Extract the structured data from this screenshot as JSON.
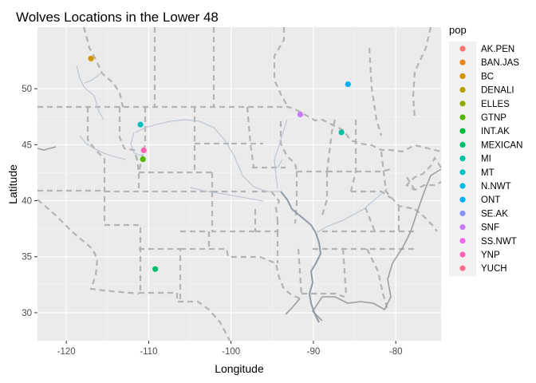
{
  "chart_data": {
    "type": "scatter",
    "title": "Wolves Locations in the Lower 48",
    "xlabel": "Longitude",
    "ylabel": "Latitude",
    "xlim": [
      -123.5,
      -74.5
    ],
    "ylim": [
      27.5,
      55.5
    ],
    "x_ticks": [
      -120,
      -110,
      -100,
      -90,
      -80
    ],
    "x_tick_labels": [
      "-120",
      "-110",
      "-100",
      "-90",
      "-80"
    ],
    "y_ticks": [
      30,
      35,
      40,
      45,
      50
    ],
    "y_tick_labels": [
      "30",
      "35",
      "40",
      "45",
      "50"
    ],
    "grid": true,
    "background_map": "US state and Canadian province borders",
    "legend_position": "right",
    "legend_title": "pop",
    "legend": [
      {
        "name": "AK.PEN",
        "color": "#F8766D"
      },
      {
        "name": "BAN.JAS",
        "color": "#E7851E"
      },
      {
        "name": "BC",
        "color": "#D09400"
      },
      {
        "name": "DENALI",
        "color": "#B2A100"
      },
      {
        "name": "ELLES",
        "color": "#8BAB00"
      },
      {
        "name": "GTNP",
        "color": "#55B400"
      },
      {
        "name": "INT.AK",
        "color": "#00BA38"
      },
      {
        "name": "MEXICAN",
        "color": "#00BE6C"
      },
      {
        "name": "MI",
        "color": "#00C1A3"
      },
      {
        "name": "MT",
        "color": "#00BFC4"
      },
      {
        "name": "N.NWT",
        "color": "#00B9E3"
      },
      {
        "name": "ONT",
        "color": "#00ADFA"
      },
      {
        "name": "SE.AK",
        "color": "#8B93FF"
      },
      {
        "name": "SNF",
        "color": "#C77CFF"
      },
      {
        "name": "SS.NWT",
        "color": "#EF67EB"
      },
      {
        "name": "YNP",
        "color": "#FF63B6"
      },
      {
        "name": "YUCH",
        "color": "#FF6C91"
      }
    ],
    "points": [
      {
        "pop": "BC",
        "x": -117.0,
        "y": 52.7,
        "color": "#D09400"
      },
      {
        "pop": "ONT",
        "x": -85.8,
        "y": 50.4,
        "color": "#00ADFA"
      },
      {
        "pop": "SNF",
        "x": -91.6,
        "y": 47.7,
        "color": "#C77CFF"
      },
      {
        "pop": "MT",
        "x": -111.0,
        "y": 46.8,
        "color": "#00BFC4"
      },
      {
        "pop": "MI",
        "x": -86.6,
        "y": 46.1,
        "color": "#00C1A3"
      },
      {
        "pop": "YNP",
        "x": -110.6,
        "y": 44.5,
        "color": "#FF63B6"
      },
      {
        "pop": "GTNP",
        "x": -110.7,
        "y": 43.7,
        "color": "#55B400"
      },
      {
        "pop": "MEXICAN",
        "x": -109.2,
        "y": 33.9,
        "color": "#00BE6C"
      }
    ]
  }
}
